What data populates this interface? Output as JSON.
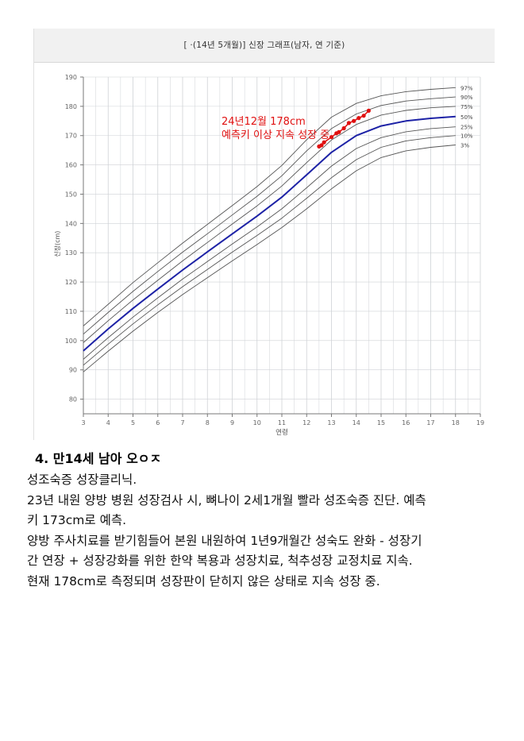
{
  "chart_data": {
    "type": "line",
    "title": "[      ·(14년 5개월)] 신장 그래프(남자, 연 기준)",
    "xlabel": "연령",
    "ylabel": "신장(cm)",
    "xlim": [
      3,
      19
    ],
    "ylim": [
      75,
      190
    ],
    "x_ticks": [
      "3",
      "4",
      "5",
      "6",
      "7",
      "8",
      "9",
      "10",
      "11",
      "12",
      "13",
      "14",
      "15",
      "16",
      "17",
      "18",
      "19"
    ],
    "y_ticks": [
      "80",
      "90",
      "100",
      "110",
      "120",
      "130",
      "140",
      "150",
      "160",
      "170",
      "180",
      "190"
    ],
    "grid": true,
    "legend_position": "right-end-of-curves",
    "x": [
      3,
      4,
      5,
      6,
      7,
      8,
      9,
      10,
      11,
      12,
      13,
      14,
      15,
      16,
      17,
      18
    ],
    "series": [
      {
        "name": "97%",
        "values": [
          105.0,
          112.4,
          119.8,
          126.6,
          133.3,
          139.7,
          146.1,
          152.6,
          159.8,
          168.6,
          176.3,
          181.0,
          183.6,
          185.0,
          185.8,
          186.4
        ]
      },
      {
        "name": "90%",
        "values": [
          102.2,
          109.6,
          116.8,
          123.6,
          130.2,
          136.5,
          142.9,
          149.3,
          156.3,
          164.8,
          172.4,
          177.4,
          180.3,
          181.8,
          182.6,
          183.2
        ]
      },
      {
        "name": "75%",
        "values": [
          99.3,
          106.8,
          113.9,
          120.6,
          127.2,
          133.5,
          139.8,
          146.0,
          152.8,
          160.8,
          168.5,
          173.8,
          177.0,
          178.6,
          179.5,
          180.0
        ]
      },
      {
        "name": "50%",
        "values": [
          96.5,
          104.0,
          111.0,
          117.6,
          124.1,
          130.3,
          136.4,
          142.5,
          149.0,
          156.6,
          164.3,
          170.0,
          173.3,
          175.0,
          175.9,
          176.5
        ]
      },
      {
        "name": "25%",
        "values": [
          93.6,
          101.0,
          108.0,
          114.6,
          121.0,
          127.0,
          133.0,
          138.8,
          145.0,
          152.2,
          159.6,
          165.6,
          169.3,
          171.3,
          172.4,
          173.0
        ]
      },
      {
        "name": "10%",
        "values": [
          91.6,
          98.8,
          105.7,
          112.2,
          118.4,
          124.3,
          130.2,
          135.9,
          141.8,
          148.6,
          155.6,
          161.8,
          166.0,
          168.2,
          169.3,
          170.0
        ]
      },
      {
        "name": "3%",
        "values": [
          89.3,
          96.4,
          103.2,
          109.6,
          115.7,
          121.5,
          127.2,
          132.8,
          138.6,
          145.0,
          151.8,
          158.0,
          162.5,
          164.8,
          166.0,
          166.8
        ]
      }
    ],
    "patient_points": {
      "x": [
        12.5,
        12.6,
        12.7,
        13.0,
        13.2,
        13.3,
        13.5,
        13.7,
        13.9,
        14.1,
        14.3,
        14.5
      ],
      "values": [
        166.3,
        166.7,
        167.7,
        169.5,
        170.8,
        171.2,
        172.5,
        174.3,
        175.0,
        176.0,
        176.8,
        178.5
      ]
    },
    "annotation_line1": "24년12월 178cm",
    "annotation_line2": "예측키 이상 지속 성장 중",
    "colors": {
      "median": "#1d22a6",
      "percentile": "#555555",
      "grid": "#cfd2d6",
      "patient": "#e01010",
      "annotation": "#e01010"
    }
  },
  "section": {
    "title": "4. 만14세 남아 오ㅇㅈ",
    "lines": [
      "성조숙증 성장클리닉.",
      "23년 내원 양방 병원 성장검사 시, 뼈나이 2세1개월 빨라 성조숙증 진단. 예측",
      "키 173cm로 예측.",
      "양방 주사치료를 받기힘들어 본원 내원하여 1년9개월간 성숙도 완화 - 성장기",
      "간 연장 + 성장강화를 위한 한약 복용과 성장치료, 척추성장 교정치료 지속.",
      "현재 178cm로 측정되며 성장판이 닫히지 않은 상태로 지속 성장 중."
    ]
  }
}
